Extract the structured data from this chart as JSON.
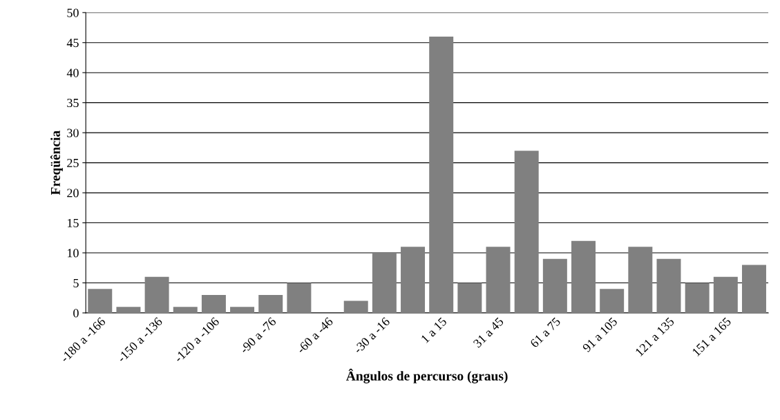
{
  "chart_data": {
    "type": "bar",
    "xlabel": "Ângulos de percurso (graus)",
    "ylabel": "Freqüência",
    "categories": [
      "-180 a -166",
      null,
      "-150 a -136",
      null,
      "-120 a -106",
      null,
      "-90 a -76",
      null,
      "-60 a -46",
      null,
      "-30 a -16",
      null,
      "1 a 15",
      null,
      "31 a 45",
      null,
      "61 a 75",
      null,
      "91 a 105",
      null,
      "121 a 135",
      null,
      "151 a 165",
      null
    ],
    "values": [
      4,
      1,
      6,
      1,
      3,
      1,
      3,
      5,
      0,
      2,
      10,
      11,
      46,
      5,
      11,
      27,
      9,
      12,
      4,
      11,
      9,
      5,
      6,
      8
    ],
    "color": "#808080",
    "ylim": [
      0,
      50
    ],
    "yticks": [
      0,
      5,
      10,
      15,
      20,
      25,
      30,
      35,
      40,
      45,
      50
    ],
    "grid": "y",
    "legend": false
  }
}
